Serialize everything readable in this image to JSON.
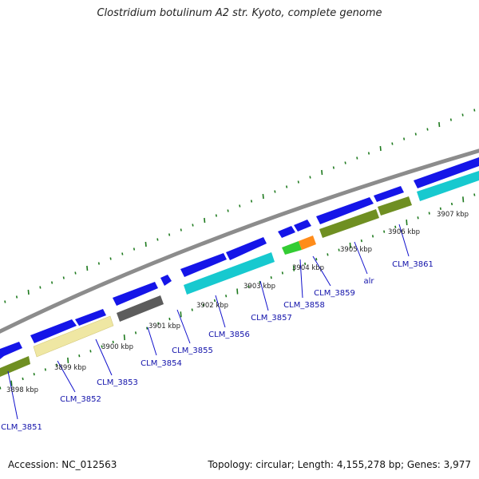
{
  "title": "Clostridium botulinum A2 str. Kyoto, complete genome",
  "footer": {
    "accession": "Accession: NC_012563",
    "summary": "Topology: circular; Length: 4,155,278 bp; Genes: 3,977"
  },
  "colors": {
    "backbone": "#8c8c8c",
    "tick": "#1e7a1e",
    "leader": "#1111cc",
    "strand_forward": "#1515e8",
    "cyan": "#17c9cf",
    "olive": "#6f8f22",
    "pale_yellow": "#efe7a3",
    "dark_gray": "#5c5c5c",
    "green": "#33cc33",
    "orange": "#ff8c1a"
  },
  "kbp_labels": [
    "3898 kbp",
    "3899 kbp",
    "3900 kbp",
    "3901 kbp",
    "3902 kbp",
    "3903 kbp",
    "3904 kbp",
    "3905 kbp",
    "3906 kbp",
    "3907 kbp"
  ],
  "gene_labels": [
    "CLM_3851",
    "CLM_3852",
    "CLM_3853",
    "CLM_3854",
    "CLM_3855",
    "CLM_3856",
    "CLM_3857",
    "CLM_3858",
    "CLM_3859",
    "alr",
    "CLM_3861"
  ]
}
